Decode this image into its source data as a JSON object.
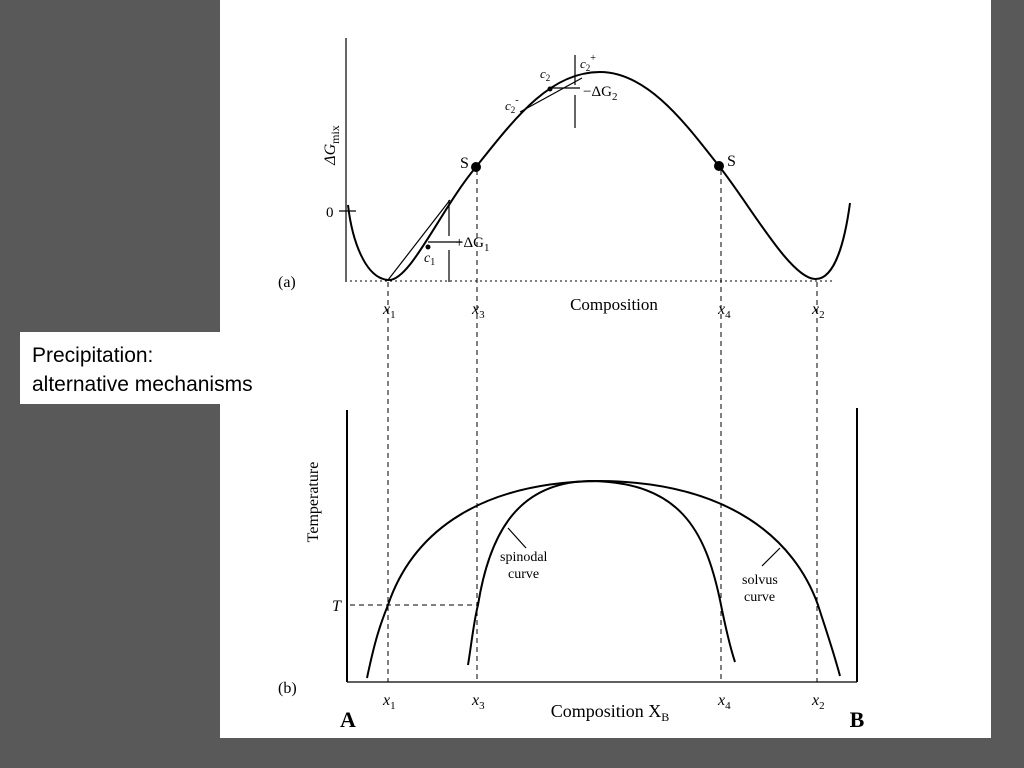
{
  "caption": {
    "line1": "Precipitation:",
    "line2": "alternative mechanisms"
  },
  "panel_a": {
    "label": "(a)",
    "y_axis": {
      "base": "ΔG",
      "sub": "mix"
    },
    "zero_tick": "0",
    "spinodal_points": [
      "S",
      "S"
    ],
    "c1": {
      "base": "c",
      "sub": "1"
    },
    "c2": {
      "base": "c",
      "sub": "2"
    },
    "c2_plus": {
      "base": "c",
      "sub": "2",
      "sup": "+"
    },
    "c2_minus": {
      "base": "c",
      "sub": "2",
      "sup": "-"
    },
    "delta_g1": {
      "base": "+ΔG",
      "sub": "1"
    },
    "delta_g2": {
      "base": "−ΔG",
      "sub": "2"
    },
    "x_labels": [
      {
        "base": "x",
        "sub": "1"
      },
      {
        "base": "x",
        "sub": "3"
      },
      {
        "base": "x",
        "sub": "4"
      },
      {
        "base": "x",
        "sub": "2"
      }
    ],
    "x_axis": "Composition"
  },
  "panel_b": {
    "label": "(b)",
    "y_axis": "Temperature",
    "t_label": "T",
    "spinodal": [
      "spinodal",
      "curve"
    ],
    "solvus": [
      "solvus",
      "curve"
    ],
    "x_labels": [
      {
        "base": "x",
        "sub": "1"
      },
      {
        "base": "x",
        "sub": "3"
      },
      {
        "base": "x",
        "sub": "4"
      },
      {
        "base": "x",
        "sub": "2"
      }
    ],
    "x_axis": {
      "base": "Composition X",
      "sub": "B"
    },
    "end_a": "A",
    "end_b": "B"
  }
}
